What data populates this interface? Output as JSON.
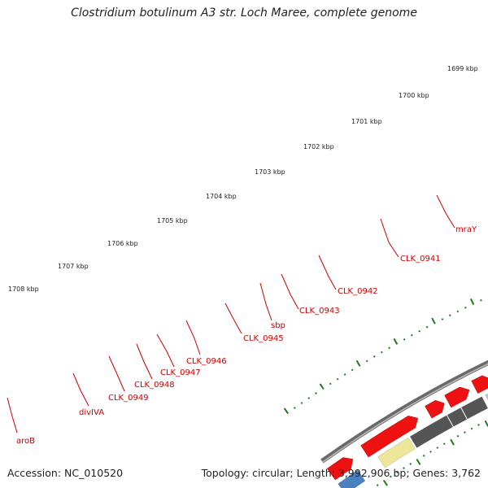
{
  "title": "Clostridium botulinum A3 str. Loch Maree, complete genome",
  "footer": {
    "accession": "Accession: NC_010520",
    "summary": "Topology: circular; Length: 3,992,906 bp; Genes: 3,762"
  },
  "colors": {
    "backbone": "#8a8a8a",
    "tick": "#1f7a1f",
    "label": "#cc0000",
    "forward": "#ee1111",
    "dark_gray": "#555555",
    "light_gray": "#c6c6c6",
    "pale_yellow": "#ece79a",
    "olive": "#6b8e23",
    "blue": "#4a82c0"
  },
  "scale_labels": [
    "1699 kbp",
    "1700 kbp",
    "1701 kbp",
    "1702 kbp",
    "1703 kbp",
    "1704 kbp",
    "1705 kbp",
    "1706 kbp",
    "1707 kbp",
    "1708 kbp"
  ],
  "gene_labels": [
    "mraY",
    "CLK_0941",
    "CLK_0942",
    "CLK_0943",
    "sbp",
    "CLK_0945",
    "CLK_0946",
    "CLK_0947",
    "CLK_0948",
    "CLK_0949",
    "divIVA",
    "aroB"
  ]
}
